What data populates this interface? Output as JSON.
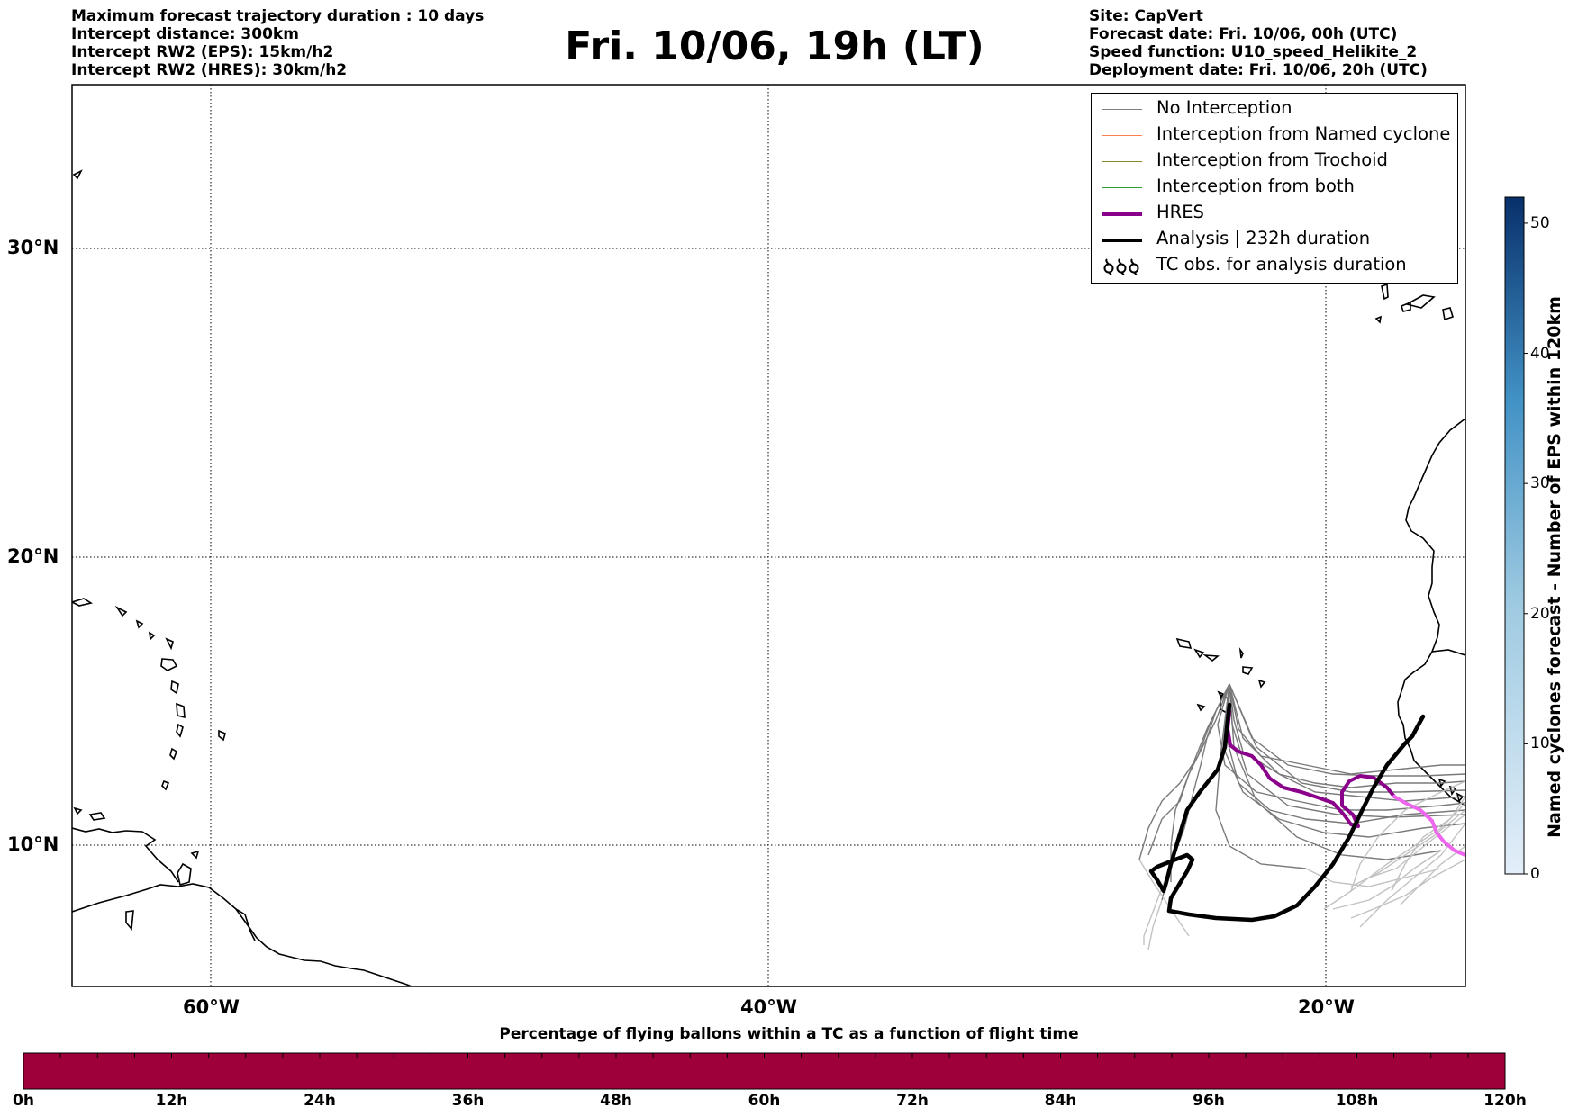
{
  "header": {
    "left_lines": [
      "Maximum forecast trajectory duration : 10 days",
      "Intercept distance: 300km",
      "Intercept RW2 (EPS):  15km/h2",
      "Intercept RW2 (HRES): 30km/h2"
    ],
    "title": "Fri. 10/06, 19h (LT)",
    "right_lines": [
      "Site: CapVert",
      "Forecast date: Fri. 10/06, 00h (UTC)",
      "Speed function: U10_speed_Helikite_2",
      "Deployment date: Fri. 10/06, 20h (UTC)"
    ]
  },
  "map": {
    "lat_labels": [
      "30°N",
      "20°N",
      "10°N"
    ],
    "lon_labels": [
      "60°W",
      "40°W",
      "20°W"
    ],
    "gridlines": true,
    "extent": {
      "lon_min": -65,
      "lon_max": -15,
      "lat_min": 5.4,
      "lat_max": 35.3
    },
    "grid_lons": [
      -60,
      -40,
      -20
    ],
    "grid_lats": [
      30,
      20,
      10
    ]
  },
  "legend": {
    "items": [
      {
        "label": "No Interception",
        "color": "#808080",
        "style": "thin"
      },
      {
        "label": "Interception from Named cyclone",
        "color": "#ff7f50",
        "style": "thin"
      },
      {
        "label": "Interception from Trochoid",
        "color": "#8b8b2a",
        "style": "thin"
      },
      {
        "label": "Interception from both",
        "color": "#2ca02c",
        "style": "thin"
      },
      {
        "label": "HRES",
        "color": "#8b008b",
        "style": "thick"
      },
      {
        "label": "Analysis | 232h duration",
        "color": "#000000",
        "style": "thick"
      },
      {
        "label": "TC obs. for analysis duration",
        "icon": "cyclone-symbols-icon"
      }
    ]
  },
  "colorbar_vertical": {
    "title": "Named cyclones forecast - Number of EPS within 120km",
    "ticks": [
      "0",
      "10",
      "20",
      "30",
      "40",
      "50"
    ],
    "tick_values": [
      0,
      10,
      20,
      30,
      40,
      50
    ],
    "min": 0,
    "max": 52,
    "color_low": "#e3eef9",
    "color_high": "#08306b"
  },
  "colorbar_horizontal": {
    "caption": "Percentage of flying ballons within a TC as a function of flight time",
    "ticks": [
      "0h",
      "12h",
      "24h",
      "36h",
      "48h",
      "60h",
      "72h",
      "84h",
      "96h",
      "108h",
      "120h"
    ],
    "tick_hours": [
      0,
      12,
      24,
      36,
      48,
      60,
      72,
      84,
      96,
      108,
      120
    ],
    "max_hours": 120,
    "fill_color": "#9e003a"
  }
}
